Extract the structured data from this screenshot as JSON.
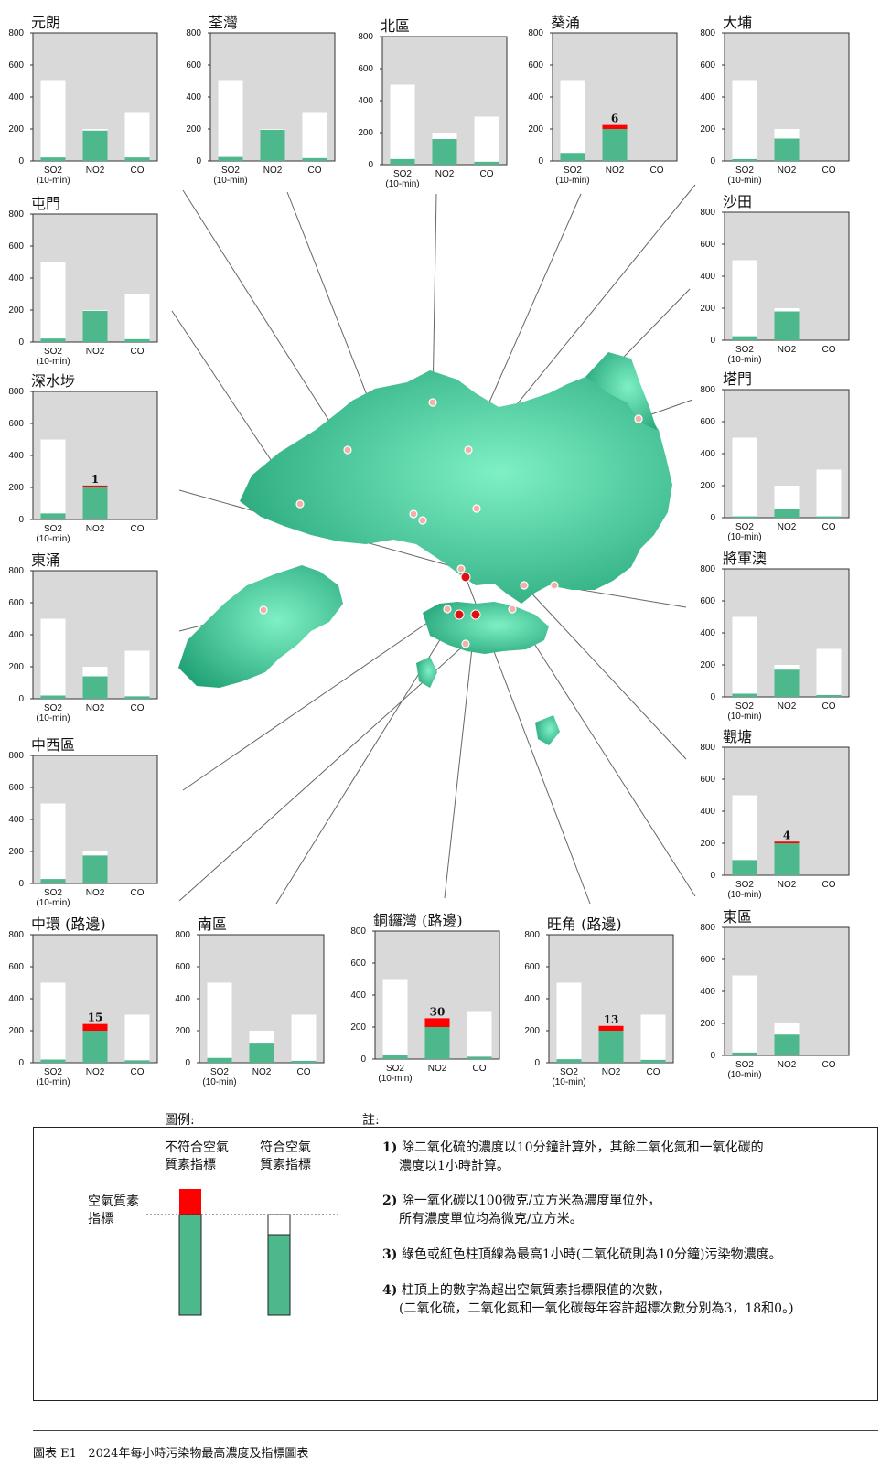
{
  "chart_data": {
    "type": "bar",
    "title": "2024年每小時污染物最高濃度及指標圖表",
    "figure_label": "圖表 E1",
    "categories": [
      "SO2",
      "NO2",
      "CO"
    ],
    "so2_sublabel": "(10-min)",
    "ylim": [
      0,
      800
    ],
    "yticks": [
      "0",
      "200",
      "400",
      "600",
      "800"
    ],
    "aqo_limits": {
      "SO2": 500,
      "NO2": 200,
      "CO": 300
    },
    "stations": [
      {
        "name": "元朗",
        "values": [
          22,
          190,
          22
        ],
        "exceed": [
          null,
          null,
          null
        ]
      },
      {
        "name": "荃灣",
        "values": [
          25,
          195,
          18
        ],
        "exceed": [
          null,
          null,
          null
        ]
      },
      {
        "name": "北區",
        "values": [
          35,
          160,
          18
        ],
        "exceed": [
          null,
          null,
          null
        ]
      },
      {
        "name": "葵涌",
        "values": [
          50,
          225,
          null
        ],
        "exceed": [
          null,
          "6",
          null
        ]
      },
      {
        "name": "大埔",
        "values": [
          12,
          140,
          null
        ],
        "exceed": [
          null,
          null,
          null
        ]
      },
      {
        "name": "屯門",
        "values": [
          22,
          195,
          18
        ],
        "exceed": [
          null,
          null,
          null
        ]
      },
      {
        "name": "沙田",
        "values": [
          25,
          180,
          null
        ],
        "exceed": [
          null,
          null,
          null
        ]
      },
      {
        "name": "深水埗",
        "values": [
          38,
          212,
          null
        ],
        "exceed": [
          null,
          "1",
          null
        ]
      },
      {
        "name": "塔門",
        "values": [
          8,
          55,
          8
        ],
        "exceed": [
          null,
          null,
          null
        ]
      },
      {
        "name": "東涌",
        "values": [
          20,
          140,
          15
        ],
        "exceed": [
          null,
          null,
          null
        ]
      },
      {
        "name": "將軍澳",
        "values": [
          20,
          170,
          12
        ],
        "exceed": [
          null,
          null,
          null
        ]
      },
      {
        "name": "中西區",
        "values": [
          28,
          175,
          null
        ],
        "exceed": [
          null,
          null,
          null
        ]
      },
      {
        "name": "觀塘",
        "values": [
          95,
          210,
          null
        ],
        "exceed": [
          null,
          "4",
          null
        ]
      },
      {
        "name": "中環 (路邊)",
        "values": [
          20,
          242,
          15
        ],
        "exceed": [
          null,
          "15",
          null
        ]
      },
      {
        "name": "南區",
        "values": [
          30,
          125,
          12
        ],
        "exceed": [
          null,
          null,
          null
        ]
      },
      {
        "name": "銅鑼灣 (路邊)",
        "values": [
          25,
          255,
          15
        ],
        "exceed": [
          null,
          "30",
          null
        ]
      },
      {
        "name": "旺角 (路邊)",
        "values": [
          22,
          230,
          18
        ],
        "exceed": [
          null,
          "13",
          null
        ]
      },
      {
        "name": "東區",
        "values": [
          18,
          130,
          null
        ],
        "exceed": [
          null,
          null,
          null
        ]
      }
    ]
  },
  "legend": {
    "title": "圖例:",
    "non_compliant_label": [
      "不符合空氣",
      "質素指標"
    ],
    "compliant_label": [
      "符合空氣",
      "質素指標"
    ],
    "aqo_label": [
      "空氣質素",
      "指標"
    ]
  },
  "notes": {
    "title": "註:",
    "items": [
      {
        "num": "1)",
        "lines": [
          "除二氧化硫的濃度以10分鐘計算外，其餘二氧化氮和一氧化碳的",
          "濃度以1小時計算。"
        ]
      },
      {
        "num": "2)",
        "lines": [
          "除一氧化碳以100微克/立方米為濃度單位外，",
          "所有濃度單位均為微克/立方米。"
        ]
      },
      {
        "num": "3)",
        "lines": [
          "綠色或紅色柱頂線為最高1小時(二氧化硫則為10分鐘)污染物濃度。"
        ]
      },
      {
        "num": "4)",
        "lines": [
          "柱頂上的數字為超出空氣質素指標限值的次數，",
          "(二氧化硫，二氧化氮和一氧化碳每年容許超標次數分別為3，18和0。)"
        ]
      }
    ]
  },
  "colors": {
    "green": "#4db88c",
    "red": "#ff0000",
    "panel": "#d9d9d9",
    "map_dark": "#27a77a",
    "map_light": "#6fe6b8"
  }
}
